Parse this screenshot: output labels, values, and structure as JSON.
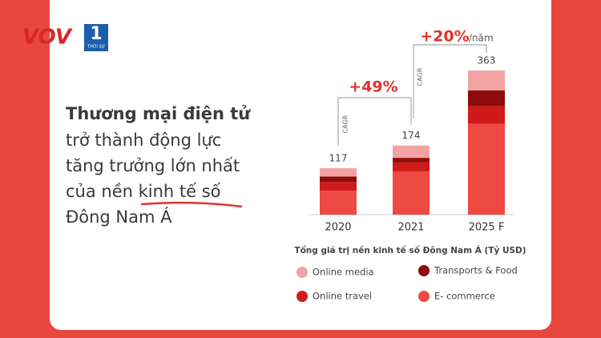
{
  "logo": {
    "brand": "VOV",
    "channel": "1",
    "channel_name": "THỜI SỰ"
  },
  "headline": [
    "Thương mại điện tử",
    "trở thành động lực",
    "tăng trưởng lớn nhất",
    "của nền kinh tế số",
    "Đông Nam Á"
  ],
  "chart_data": {
    "type": "stacked-bar",
    "caption": "Tổng giá trị nền kinh tế số Đông Nam Á (Tỷ USD)",
    "categories": [
      "2020",
      "2021",
      "2025 F"
    ],
    "totals": [
      117,
      174,
      363
    ],
    "series": [
      {
        "name": "Online media",
        "color": "#f4a3a3",
        "values": [
          21,
          31,
          50
        ]
      },
      {
        "name": "Transports & Food",
        "color": "#8e0b0b",
        "values": [
          14,
          11,
          40
        ]
      },
      {
        "name": "Online travel",
        "color": "#d01a1a",
        "values": [
          22,
          23,
          44
        ]
      },
      {
        "name": "E- commerce",
        "color": "#ee4a42",
        "values": [
          60,
          109,
          229
        ]
      }
    ],
    "annotations": {
      "growth_1": "+49%",
      "growth_2": "+20%",
      "per_year": "/năm",
      "cagr_1": "CAGR",
      "cagr_2": "CAGR"
    }
  }
}
